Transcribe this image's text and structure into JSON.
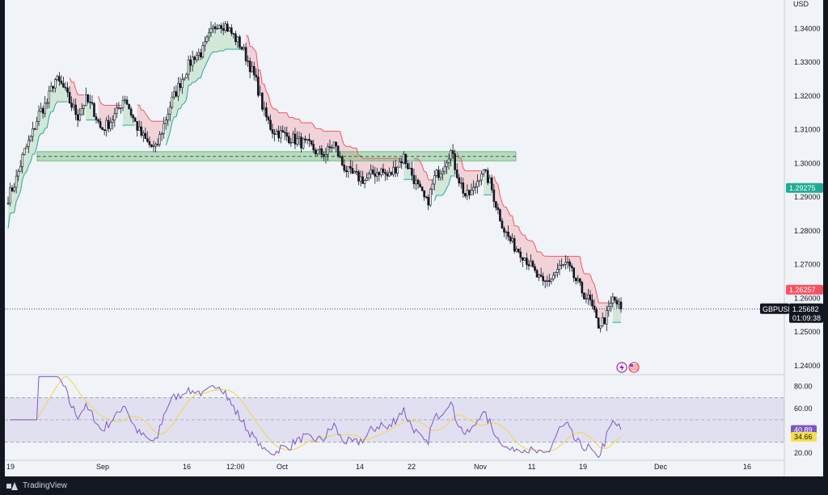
{
  "branding": {
    "name": "TradingView",
    "logo_icon": "tradingview-logo-icon"
  },
  "chart_data": {
    "type": "candlestick",
    "symbol": "GBPUSD",
    "currency": "USD",
    "price_axis_ticks": [
      "1.34000",
      "1.33000",
      "1.32000",
      "1.31000",
      "1.30000",
      "1.29000",
      "1.28000",
      "1.27000",
      "1.26000",
      "1.25000",
      "1.24000"
    ],
    "price_axis_tick_values": [
      1.34,
      1.33,
      1.32,
      1.31,
      1.3,
      1.29,
      1.28,
      1.27,
      1.26,
      1.25,
      1.24
    ],
    "ylim": [
      1.2376,
      1.3485
    ],
    "time_axis_labels": [
      "19",
      "Sep",
      "16",
      "12:00",
      "Oct",
      "14",
      "22",
      "Nov",
      "11",
      "19",
      "Dec",
      "16"
    ],
    "current_price": {
      "symbol": "GBPUSD",
      "value": "1.25682",
      "countdown": "01:09:38",
      "price": 1.25682
    },
    "price_tags": [
      {
        "label": "1.29275",
        "value": 1.29275,
        "color": "#22ab94"
      },
      {
        "label": "1.26257",
        "value": 1.26257,
        "color": "#f7525f"
      }
    ],
    "support_zone": {
      "low": 1.3008,
      "high": 1.3035,
      "dashed_level": 1.3021,
      "color": "#2e9b52"
    },
    "supertrend": {
      "up_color": "#22ab94",
      "down_color": "#f7525f"
    },
    "series": [
      {
        "name": "price_path",
        "type": "candles",
        "values": [
          1.29,
          1.295,
          1.303,
          1.308,
          1.315,
          1.318,
          1.325,
          1.323,
          1.318,
          1.314,
          1.319,
          1.316,
          1.31,
          1.312,
          1.315,
          1.32,
          1.314,
          1.309,
          1.306,
          1.304,
          1.311,
          1.318,
          1.323,
          1.328,
          1.332,
          1.333,
          1.338,
          1.342,
          1.341,
          1.338,
          1.335,
          1.33,
          1.324,
          1.315,
          1.31,
          1.309,
          1.308,
          1.307,
          1.306,
          1.305,
          1.303,
          1.303,
          1.306,
          1.3,
          1.297,
          1.296,
          1.295,
          1.297,
          1.298,
          1.296,
          1.299,
          1.302,
          1.297,
          1.292,
          1.288,
          1.296,
          1.299,
          1.304,
          1.296,
          1.29,
          1.292,
          1.298,
          1.295,
          1.287,
          1.28,
          1.276,
          1.274,
          1.271,
          1.267,
          1.264,
          1.266,
          1.269,
          1.27,
          1.266,
          1.262,
          1.259,
          1.252,
          1.254,
          1.26,
          1.2568
        ]
      },
      {
        "name": "supertrend_path",
        "type": "line",
        "values": []
      }
    ]
  },
  "rsi": {
    "axis_ticks": [
      "80.00",
      "60.00",
      "20.00"
    ],
    "axis_tick_values": [
      80,
      60,
      20
    ],
    "ylim": [
      15,
      90
    ],
    "upper_band": 70,
    "middle_band": 50,
    "lower_band": 30,
    "rsi_value": {
      "label": "40.89",
      "value": 40.89,
      "color": "#7e57c2"
    },
    "ma_value": {
      "label": "34.66",
      "value": 34.66,
      "color": "#f4e04d"
    },
    "line_colors": {
      "rsi": "#7e57c2",
      "ma": "#f4d34a"
    }
  },
  "events": {
    "icons": [
      "lightning-event-icon",
      "us-flag-event-icon"
    ]
  }
}
